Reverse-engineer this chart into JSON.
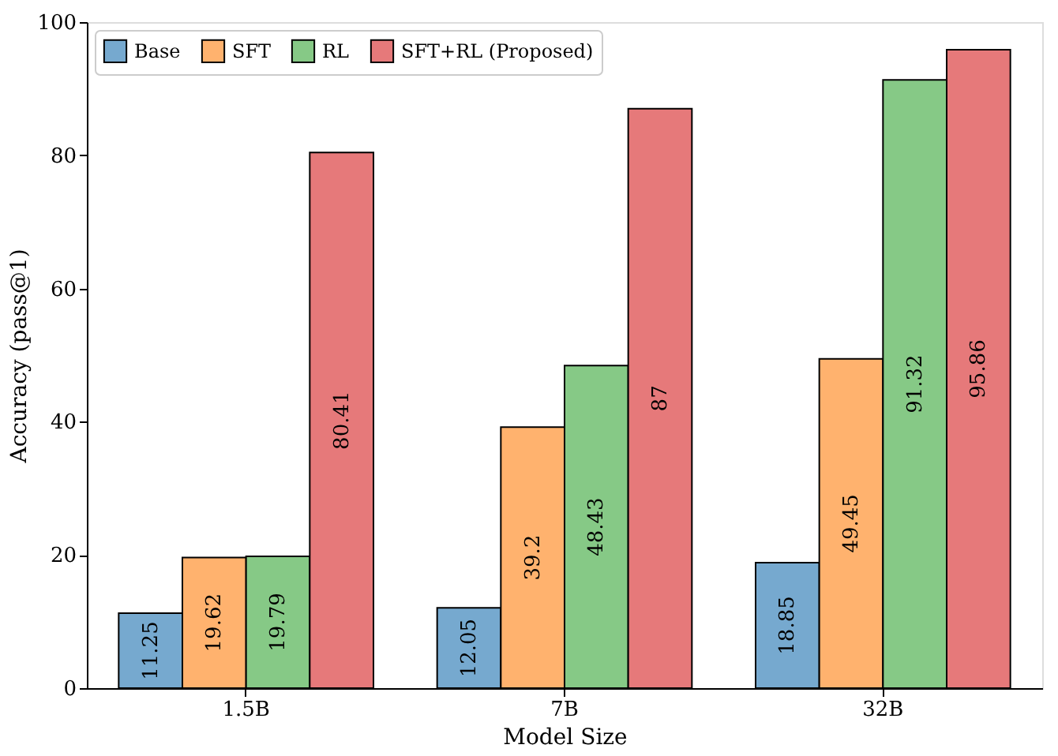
{
  "chart_data": {
    "type": "bar",
    "xlabel": "Model Size",
    "ylabel": "Accuracy (pass@1)",
    "categories": [
      "1.5B",
      "7B",
      "32B"
    ],
    "series": [
      {
        "name": "Base",
        "color": "#76a9cf",
        "values": [
          11.25,
          12.05,
          18.85
        ]
      },
      {
        "name": "SFT",
        "color": "#ffb26e",
        "values": [
          19.62,
          39.2,
          49.45
        ]
      },
      {
        "name": "RL",
        "color": "#86c986",
        "values": [
          19.79,
          48.43,
          91.32
        ]
      },
      {
        "name": "SFT+RL (Proposed)",
        "color": "#e6797a",
        "values": [
          80.41,
          87,
          95.86
        ]
      }
    ],
    "ylim": [
      0,
      100
    ],
    "yticks": [
      0,
      20,
      40,
      60,
      80,
      100
    ],
    "grid": false,
    "legend": "top left",
    "data_labels": true
  }
}
